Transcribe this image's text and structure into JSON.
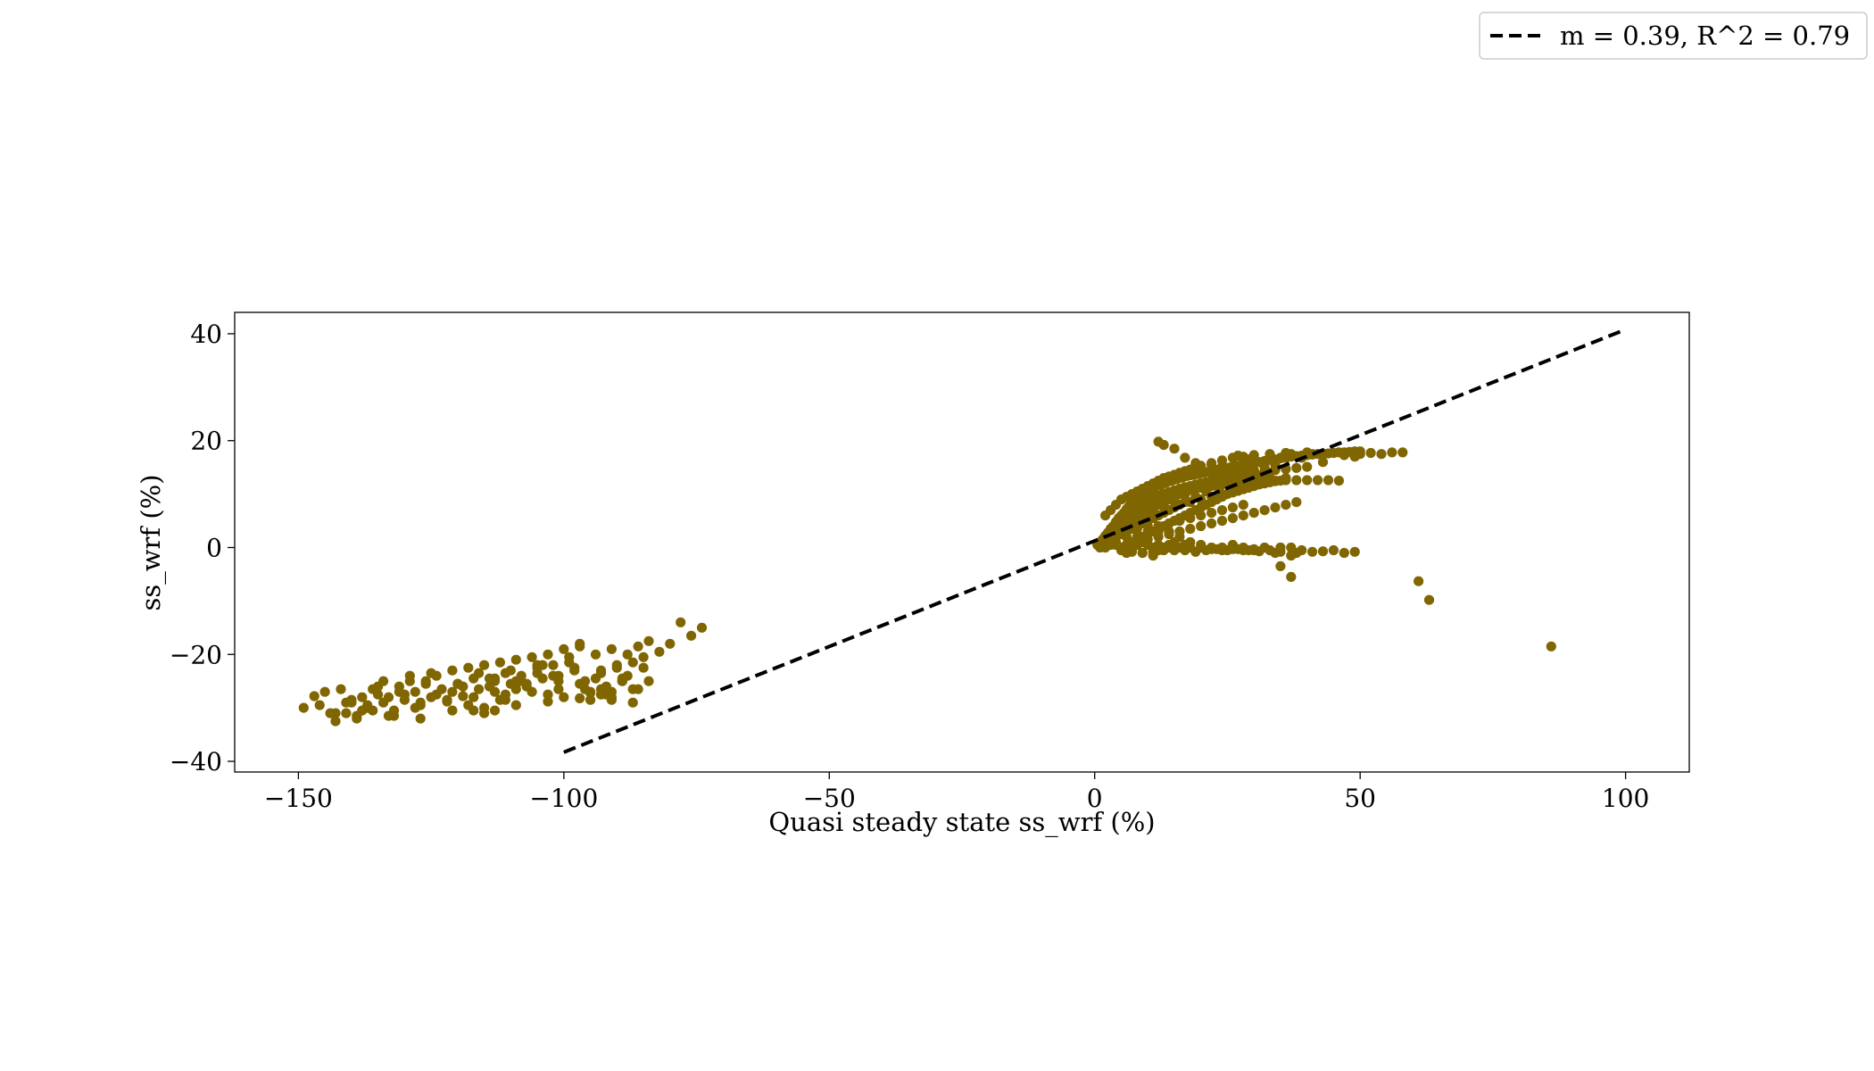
{
  "chart_data": {
    "type": "scatter",
    "title": "",
    "xlabel": "Quasi steady state ss_wrf (%)",
    "ylabel": "ss_wrf (%)",
    "xlim": [
      -162,
      112
    ],
    "ylim": [
      -42,
      44
    ],
    "xticks": [
      -150,
      -100,
      -50,
      0,
      50,
      100
    ],
    "yticks": [
      -40,
      -20,
      0,
      20,
      40
    ],
    "xtick_labels": [
      "−150",
      "−100",
      "−50",
      "0",
      "50",
      "100"
    ],
    "ytick_labels": [
      "−40",
      "−20",
      "0",
      "20",
      "40"
    ],
    "grid": false,
    "legend_position": "top-right",
    "colors": {
      "points": "#806600",
      "fit_line": "#000000"
    },
    "fit_line": {
      "label": "m = 0.39, R^2 = 0.79",
      "slope": 0.39,
      "r_squared": 0.79,
      "x": [
        -100,
        100
      ],
      "y": [
        -38.3,
        40.8
      ]
    },
    "scatter": {
      "x": [
        -149,
        -147,
        -145,
        -143,
        -142,
        -141,
        -140,
        -139,
        -138,
        -137,
        -136,
        -135,
        -134,
        -133,
        -132,
        -131,
        -130,
        -129,
        -128,
        -127,
        -126,
        -125,
        -124,
        -123,
        -122,
        -121,
        -120,
        -119,
        -118,
        -117,
        -116,
        -115,
        -114,
        -113,
        -112,
        -111,
        -110,
        -109,
        -108,
        -107,
        -106,
        -105,
        -104,
        -103,
        -102,
        -101,
        -100,
        -99,
        -98,
        -97,
        -96,
        -95,
        -94,
        -93,
        -92,
        -91,
        -90,
        -89,
        -88,
        -87,
        -86,
        -85,
        -84,
        -82,
        -80,
        -78,
        -76,
        -74,
        -146,
        -144,
        -140,
        -138,
        -136,
        -134,
        -132,
        -130,
        -128,
        -126,
        -124,
        -122,
        -120,
        -118,
        -116,
        -114,
        -112,
        -110,
        -108,
        -106,
        -104,
        -102,
        -100,
        -98,
        -96,
        -94,
        -92,
        -90,
        -88,
        -86,
        -84,
        -139,
        -137,
        -135,
        -131,
        -129,
        -127,
        -125,
        -121,
        -119,
        -117,
        -115,
        -113,
        -111,
        -109,
        -107,
        -105,
        -103,
        -101,
        -99,
        -97,
        -95,
        -93,
        -91,
        -89,
        -87,
        -85,
        -143,
        -141,
        -133,
        -127,
        -121,
        -117,
        -115,
        -113,
        -111,
        -109,
        -103,
        -97,
        -93,
        -91,
        -89,
        -87,
        -91,
        -93,
        -95,
        -97,
        -101,
        -105,
        -109,
        -113,
        0.5,
        1,
        1.5,
        2,
        2.5,
        3,
        3.5,
        4,
        4.5,
        5,
        5.5,
        6,
        6.5,
        7,
        7.5,
        8,
        8.5,
        9,
        9.5,
        10,
        10.5,
        11,
        11.5,
        12,
        12.5,
        13,
        13.5,
        14,
        14.5,
        15,
        15.5,
        16,
        16.5,
        17,
        17.5,
        18,
        18.5,
        19,
        19.5,
        20,
        20.5,
        21,
        21.5,
        22,
        22.5,
        23,
        23.5,
        24,
        24.5,
        25,
        25.5,
        26,
        26.5,
        27,
        27.5,
        28,
        28.5,
        29,
        29.5,
        30,
        31,
        32,
        33,
        34,
        35,
        36,
        37,
        38,
        39,
        40,
        41,
        42,
        43,
        44,
        45,
        46,
        47,
        48,
        49,
        50,
        3,
        4,
        5,
        6,
        7,
        8,
        9,
        10,
        11,
        12,
        13,
        14,
        15,
        16,
        17,
        18,
        19,
        20,
        21,
        22,
        23,
        24,
        25,
        26,
        27,
        28,
        29,
        30,
        2,
        3,
        4,
        5,
        6,
        7,
        8,
        9,
        10,
        11,
        12,
        13,
        14,
        15,
        16,
        17,
        18,
        19,
        20,
        21,
        22,
        23,
        24,
        25,
        26,
        27,
        28,
        29,
        30,
        32,
        34,
        36,
        38,
        40,
        1,
        2,
        3,
        4,
        5,
        6,
        7,
        8,
        9,
        10,
        11,
        12,
        13,
        14,
        15,
        16,
        17,
        18,
        19,
        20,
        21,
        22,
        23,
        24,
        25,
        26,
        27,
        28,
        30,
        32,
        34,
        36,
        38,
        40,
        42,
        44,
        46,
        5,
        6,
        7,
        8,
        9,
        10,
        11,
        12,
        13,
        14,
        15,
        16,
        17,
        18,
        19,
        20,
        21,
        22,
        23,
        24,
        25,
        26,
        27,
        28,
        29,
        30,
        31,
        32,
        33,
        34,
        35,
        2,
        3,
        4,
        5,
        6,
        7,
        8,
        9,
        10,
        11,
        12,
        13,
        14,
        15,
        16,
        17,
        18,
        19,
        20,
        22,
        24,
        26,
        28,
        30,
        33,
        36,
        40,
        43,
        47,
        49,
        54,
        56,
        58,
        12,
        13,
        15,
        17,
        19,
        22,
        24,
        27,
        29,
        32,
        35,
        37,
        39,
        41,
        43,
        50,
        52,
        5,
        7,
        9,
        11,
        13,
        15,
        17,
        19,
        21,
        23,
        25,
        27,
        29,
        31,
        33,
        35,
        37,
        39,
        41,
        43,
        45,
        47,
        49,
        6,
        8,
        10,
        12,
        14,
        16,
        18,
        20,
        22,
        24,
        26,
        28,
        30,
        32,
        34,
        36,
        38,
        4,
        6,
        8,
        10,
        12,
        14,
        16,
        18,
        20,
        22,
        24,
        26,
        28,
        30,
        32,
        34,
        36,
        3,
        5,
        7,
        9,
        11,
        13,
        15,
        17,
        19,
        21,
        23,
        25,
        27,
        29,
        31,
        33,
        4,
        6,
        8,
        10,
        12,
        14,
        16,
        18,
        20,
        22,
        24,
        26,
        28,
        30,
        32,
        34,
        3,
        5,
        7,
        9,
        11,
        13,
        15,
        17,
        19,
        21,
        23,
        25,
        27,
        29,
        1,
        2,
        3,
        4,
        5,
        6,
        7,
        8,
        9,
        10,
        11,
        12,
        13,
        14,
        15,
        16,
        17,
        18,
        20,
        22,
        24,
        26,
        28,
        30,
        32,
        35,
        38,
        2,
        4,
        6,
        8,
        10,
        12,
        14,
        16,
        18,
        20,
        22,
        24,
        26,
        28,
        30,
        34,
        37,
        4,
        6,
        8,
        10,
        12,
        14,
        16,
        18,
        20,
        22,
        24,
        26,
        28,
        6,
        7,
        8,
        9,
        11,
        12,
        14,
        15,
        17,
        35,
        37,
        61,
        63,
        86
      ],
      "y": [
        -30,
        -27.8,
        -27,
        -32.5,
        -26.5,
        -31,
        -29,
        -32,
        -28,
        -29.5,
        -30.5,
        -27.5,
        -25,
        -28,
        -30.5,
        -26,
        -28.5,
        -24,
        -27,
        -29.5,
        -25.5,
        -28,
        -24,
        -26.5,
        -28.5,
        -23,
        -25.5,
        -27.8,
        -22.5,
        -24.5,
        -26.5,
        -22,
        -24.5,
        -27,
        -21.5,
        -23.5,
        -25.5,
        -21,
        -24,
        -26,
        -20.5,
        -22.5,
        -24.5,
        -20,
        -22,
        -25,
        -19,
        -21.5,
        -23,
        -18.5,
        -25,
        -27,
        -20,
        -23.5,
        -26,
        -19,
        -22,
        -24.5,
        -20,
        -21.5,
        -18.5,
        -20.5,
        -17.5,
        -19.5,
        -18,
        -14,
        -16.5,
        -15,
        -29.5,
        -31,
        -28.5,
        -30.5,
        -26.5,
        -29,
        -31.5,
        -27.5,
        -30,
        -25,
        -27.5,
        -28.8,
        -25.5,
        -29.5,
        -23.5,
        -26,
        -28.5,
        -23,
        -25,
        -27,
        -22,
        -24,
        -28,
        -22.5,
        -26.5,
        -24.5,
        -27.5,
        -22.5,
        -24,
        -26.5,
        -25,
        -31.5,
        -30,
        -26,
        -27,
        -25,
        -29,
        -23.5,
        -27,
        -26,
        -28,
        -30,
        -24.5,
        -27.5,
        -29.5,
        -25.5,
        -22,
        -28.8,
        -26.5,
        -20.5,
        -18,
        -28.5,
        -23,
        -27,
        -25,
        -26.5,
        -22.5,
        -31,
        -29,
        -31.5,
        -32,
        -30.5,
        -30.5,
        -31,
        -30.5,
        -28.5,
        -26.5,
        -27.5,
        -28.2,
        -26.5,
        -28.5,
        -25,
        -29,
        -28,
        -27.5,
        -27.2,
        -25.5,
        -24,
        -23.5,
        -25,
        -25,
        0.5,
        1,
        1.5,
        2.2,
        2.8,
        3.5,
        4,
        4.8,
        5.5,
        6,
        6.5,
        7.2,
        7.8,
        8.3,
        8.8,
        9.2,
        9.6,
        10,
        10.3,
        10.6,
        10.9,
        11.1,
        11.4,
        11.6,
        11.8,
        12,
        12.2,
        12.4,
        12.5,
        12.7,
        12.8,
        13,
        13.1,
        13.3,
        13.4,
        13.5,
        13.6,
        13.7,
        13.8,
        13.9,
        14,
        14.1,
        14.2,
        14.3,
        14.4,
        14.5,
        14.6,
        14.7,
        14.8,
        14.9,
        15,
        15.1,
        15.2,
        15.3,
        15.4,
        15.5,
        15.6,
        15.7,
        15.8,
        15.9,
        16,
        16.2,
        16.4,
        16.5,
        16.7,
        16.8,
        17,
        17.1,
        17.2,
        17.3,
        17.4,
        17.5,
        17.5,
        17.6,
        17.7,
        17.8,
        17.8,
        17.9,
        18,
        18,
        1,
        2,
        3,
        3.5,
        4.5,
        5.5,
        6.5,
        7.5,
        8,
        8.5,
        9,
        9.5,
        10,
        10.3,
        10.5,
        10.8,
        11,
        11.2,
        11.4,
        11.5,
        11.7,
        11.8,
        12,
        12.1,
        12.3,
        12.4,
        12.5,
        12.6,
        2,
        3,
        4,
        5,
        6,
        6.8,
        7.5,
        8.2,
        8.8,
        9.3,
        9.7,
        10.1,
        10.4,
        10.7,
        11,
        11.3,
        11.5,
        11.8,
        12,
        12.2,
        12.4,
        12.6,
        12.8,
        13,
        13.2,
        13.4,
        13.6,
        13.8,
        14,
        14.2,
        14.5,
        14.7,
        14.9,
        15.1,
        0.2,
        0.6,
        1.2,
        2,
        2.8,
        3.6,
        4.4,
        5.2,
        6,
        6.8,
        7.5,
        8.2,
        8.8,
        9.3,
        9.8,
        10.2,
        10.5,
        10.8,
        11,
        11.2,
        11.4,
        11.6,
        11.7,
        11.8,
        12,
        12.1,
        12.2,
        12.3,
        12.4,
        12.5,
        12.5,
        12.6,
        12.6,
        12.6,
        12.6,
        12.6,
        12.5,
        0,
        0.5,
        1,
        1.5,
        2,
        2.5,
        3,
        3.5,
        4,
        4.5,
        5,
        5.5,
        6,
        6.5,
        7,
        7.5,
        8,
        8.5,
        9,
        9.5,
        10,
        10.3,
        10.6,
        10.9,
        11.2,
        11.5,
        11.8,
        12,
        12.2,
        12.4,
        12.5,
        6,
        7,
        8,
        9,
        9.5,
        10,
        10.5,
        11,
        11.5,
        12,
        12.5,
        13,
        13.3,
        13.6,
        14,
        14.3,
        14.6,
        15,
        15.3,
        15.8,
        16.3,
        16.8,
        17,
        17.3,
        17.5,
        17.7,
        17.8,
        17.6,
        17.3,
        17,
        17.5,
        17.8,
        17.8,
        19.8,
        19.2,
        18.5,
        16.8,
        15.8,
        15.5,
        15.2,
        17.2,
        16.5,
        16,
        16.8,
        17.5,
        16.8,
        17.5,
        16,
        17.5,
        17.7,
        -0.5,
        -0.8,
        -1,
        -0.8,
        -0.5,
        -0.3,
        -0.5,
        -0.8,
        -0.5,
        -0.3,
        -0.5,
        -0.3,
        -0.5,
        -0.7,
        -0.5,
        -0.8,
        0,
        -0.5,
        -0.8,
        -0.7,
        -0.5,
        -1,
        -0.8,
        0.5,
        1,
        1.5,
        2,
        2.5,
        3,
        3.5,
        4,
        4.5,
        5,
        5.5,
        6,
        6.5,
        7,
        7.5,
        8,
        8.5,
        2,
        3,
        4,
        5,
        6,
        7,
        8,
        8.5,
        9,
        9.5,
        10,
        10.5,
        11,
        11.5,
        12,
        12.5,
        13,
        1.5,
        2.5,
        3.5,
        4.5,
        5.5,
        6.5,
        7.5,
        8.5,
        9.5,
        10.5,
        11.5,
        12,
        12.5,
        13,
        13.5,
        14,
        4,
        5,
        6,
        7,
        8,
        9,
        10,
        11,
        12,
        12.5,
        13,
        13.5,
        14,
        14.5,
        15,
        15.5,
        3,
        4,
        5,
        6,
        7,
        8,
        9,
        10,
        11,
        12,
        13,
        13.5,
        14,
        14.5,
        0,
        0,
        0.5,
        0.5,
        0,
        0.5,
        0,
        0.5,
        1,
        0.5,
        0,
        0.5,
        0,
        0.5,
        1,
        0,
        0.5,
        0,
        0,
        -0.3,
        -0.5,
        -0.3,
        -0.5,
        -0.3,
        0,
        0,
        -1,
        1,
        1,
        2,
        2,
        3,
        3,
        3,
        2,
        1,
        0.5,
        0,
        0,
        0.5,
        0,
        -0.5,
        -1,
        -1.5,
        3,
        3,
        3.5,
        4,
        4,
        4.5,
        5,
        5.5,
        6,
        6.5,
        7,
        7.5,
        8,
        -1,
        -0.5,
        0.5,
        -1,
        -1.5,
        -0.5,
        0,
        -0.5,
        0.5,
        -3.5,
        -5.5,
        -6.3,
        -9.8,
        -18.5
      ]
    }
  }
}
